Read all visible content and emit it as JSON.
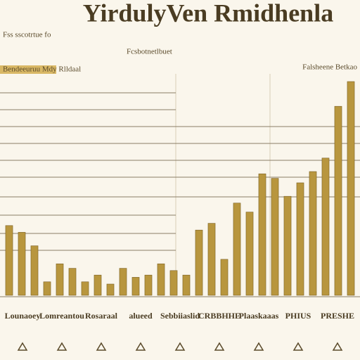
{
  "chart_data": {
    "type": "bar",
    "title": "YirdulyVen Rmidhenla",
    "subtitle": "Fss sscotrtue fo",
    "header_left": "Bendeeuruu Mdy Rlldaal",
    "header_right": "Falsheene Betkao",
    "annotation": "Fcsbotnetlbuet",
    "axis_labels": [
      "Lounaoey",
      "Lomreantou",
      "Rosaraal",
      "alueed",
      "Sebbiiaslid",
      "CRBBHHE",
      "Plaaskaaas",
      "PHIUS",
      "PRESHE"
    ],
    "values": [
      31,
      28,
      22,
      6,
      14,
      12,
      6,
      9,
      5,
      12,
      8,
      9,
      14,
      11,
      9,
      29,
      32,
      16,
      41,
      37,
      54,
      52,
      44,
      50,
      55,
      61,
      84,
      95
    ],
    "color": "#b8963e",
    "ylim": [
      0,
      100
    ]
  }
}
